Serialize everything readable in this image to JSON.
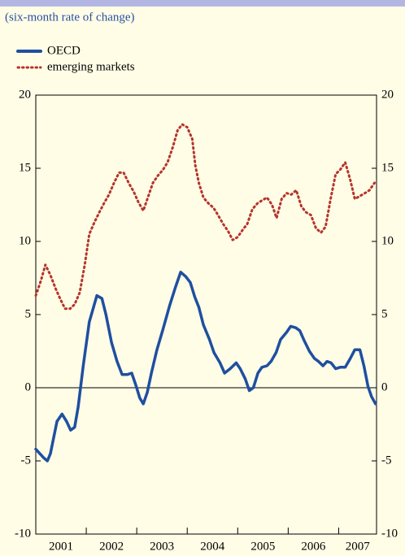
{
  "chart_data": {
    "type": "line",
    "subtitle": "(six-month rate of change)",
    "xlim": [
      2001,
      2007.75
    ],
    "xticks": [
      2001,
      2002,
      2003,
      2004,
      2005,
      2006,
      2007
    ],
    "ylim": [
      -10,
      20
    ],
    "yticks": [
      -10,
      -5,
      0,
      5,
      10,
      15,
      20
    ],
    "legend": "top-left",
    "series": [
      {
        "name": "OECD",
        "color": "#1f4fa0",
        "style": "solid",
        "x": [
          2001.0,
          2001.16,
          2001.23,
          2001.29,
          2001.42,
          2001.52,
          2001.61,
          2001.69,
          2001.77,
          2001.84,
          2001.94,
          2002.06,
          2002.21,
          2002.31,
          2002.39,
          2002.5,
          2002.61,
          2002.71,
          2002.81,
          2002.9,
          2002.98,
          2003.06,
          2003.13,
          2003.21,
          2003.29,
          2003.4,
          2003.52,
          2003.65,
          2003.76,
          2003.87,
          2003.97,
          2004.06,
          2004.15,
          2004.23,
          2004.32,
          2004.44,
          2004.53,
          2004.65,
          2004.74,
          2004.85,
          2004.97,
          2005.05,
          2005.15,
          2005.23,
          2005.31,
          2005.4,
          2005.48,
          2005.58,
          2005.66,
          2005.76,
          2005.85,
          2005.97,
          2006.05,
          2006.15,
          2006.23,
          2006.32,
          2006.42,
          2006.52,
          2006.6,
          2006.69,
          2006.77,
          2006.85,
          2006.94,
          2007.03,
          2007.13,
          2007.23,
          2007.32,
          2007.42,
          2007.5,
          2007.58,
          2007.65,
          2007.73
        ],
        "values": [
          -4.2,
          -4.8,
          -5.0,
          -4.5,
          -2.3,
          -1.8,
          -2.3,
          -2.9,
          -2.7,
          -1.3,
          1.5,
          4.5,
          6.3,
          6.1,
          5.0,
          3.1,
          1.8,
          0.9,
          0.9,
          1.0,
          0.2,
          -0.7,
          -1.1,
          -0.3,
          1.0,
          2.6,
          4.0,
          5.6,
          6.8,
          7.9,
          7.6,
          7.2,
          6.2,
          5.5,
          4.3,
          3.3,
          2.4,
          1.7,
          1.0,
          1.3,
          1.7,
          1.3,
          0.6,
          -0.2,
          0.0,
          1.0,
          1.4,
          1.5,
          1.8,
          2.4,
          3.3,
          3.8,
          4.2,
          4.1,
          3.9,
          3.2,
          2.5,
          2.0,
          1.8,
          1.5,
          1.8,
          1.7,
          1.3,
          1.4,
          1.4,
          2.0,
          2.6,
          2.6,
          1.5,
          0.1,
          -0.6,
          -1.1
        ]
      },
      {
        "name": "emerging markets",
        "color": "#b5342c",
        "style": "dotted",
        "x": [
          2001.0,
          2001.1,
          2001.19,
          2001.29,
          2001.39,
          2001.48,
          2001.58,
          2001.68,
          2001.77,
          2001.87,
          2001.97,
          2002.06,
          2002.16,
          2002.26,
          2002.35,
          2002.45,
          2002.55,
          2002.65,
          2002.74,
          2002.84,
          2002.94,
          2003.03,
          2003.13,
          2003.23,
          2003.32,
          2003.42,
          2003.52,
          2003.61,
          2003.71,
          2003.81,
          2003.9,
          2004.0,
          2004.1,
          2004.16,
          2004.23,
          2004.32,
          2004.42,
          2004.52,
          2004.61,
          2004.71,
          2004.81,
          2004.9,
          2005.0,
          2005.1,
          2005.19,
          2005.29,
          2005.39,
          2005.48,
          2005.58,
          2005.68,
          2005.77,
          2005.87,
          2005.97,
          2006.06,
          2006.16,
          2006.26,
          2006.35,
          2006.45,
          2006.55,
          2006.65,
          2006.74,
          2006.84,
          2006.94,
          2007.03,
          2007.13,
          2007.23,
          2007.32,
          2007.42,
          2007.52,
          2007.61,
          2007.71
        ],
        "values": [
          6.3,
          7.3,
          8.4,
          7.7,
          6.8,
          6.1,
          5.4,
          5.4,
          5.7,
          6.5,
          8.4,
          10.5,
          11.3,
          12.0,
          12.6,
          13.2,
          14.0,
          14.7,
          14.7,
          14.0,
          13.4,
          12.7,
          12.1,
          13.1,
          14.0,
          14.5,
          14.9,
          15.4,
          16.4,
          17.6,
          18.0,
          17.8,
          17.0,
          15.2,
          14.0,
          13.0,
          12.6,
          12.3,
          11.8,
          11.2,
          10.7,
          10.1,
          10.3,
          10.8,
          11.2,
          12.2,
          12.6,
          12.8,
          13.0,
          12.5,
          11.6,
          12.9,
          13.3,
          13.2,
          13.5,
          12.4,
          12.0,
          11.8,
          10.9,
          10.6,
          11.0,
          12.9,
          14.6,
          14.9,
          15.4,
          14.2,
          12.9,
          13.1,
          13.3,
          13.5,
          14.0
        ]
      }
    ]
  }
}
